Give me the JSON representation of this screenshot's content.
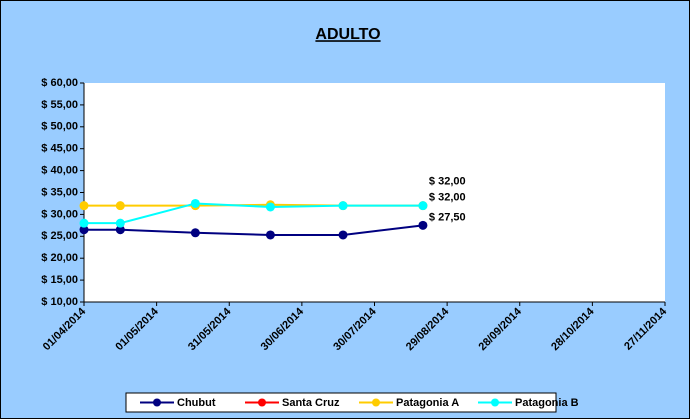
{
  "chart_data": {
    "type": "line",
    "title": "ADULTO",
    "x": [
      "2014-04-01",
      "2014-04-16",
      "2014-05-17",
      "2014-06-17",
      "2014-07-17",
      "2014-08-19"
    ],
    "series": [
      {
        "name": "Chubut",
        "color": "#000080",
        "values": [
          26.5,
          26.5,
          25.8,
          25.3,
          25.3,
          27.5
        ],
        "value_labels": [
          null,
          null,
          null,
          null,
          null,
          "$ 27,50"
        ]
      },
      {
        "name": "Santa Cruz",
        "color": "#ff0000",
        "values": [
          null,
          null,
          null,
          null,
          null,
          null
        ]
      },
      {
        "name": "Patagonia A",
        "color": "#ffcc00",
        "values": [
          32.0,
          32.0,
          32.0,
          32.2,
          32.0,
          32.0
        ],
        "value_labels": [
          null,
          null,
          null,
          null,
          null,
          "$ 32,00"
        ]
      },
      {
        "name": "Patagonia B",
        "color": "#00ffff",
        "values": [
          28.0,
          28.0,
          32.5,
          31.7,
          32.0,
          32.0
        ],
        "value_labels": [
          null,
          null,
          null,
          null,
          null,
          "$ 32,00"
        ]
      }
    ],
    "ylim": [
      10,
      60
    ],
    "yticks": [
      {
        "value": 10,
        "label": "$ 10,00"
      },
      {
        "value": 15,
        "label": "$ 15,00"
      },
      {
        "value": 20,
        "label": "$ 20,00"
      },
      {
        "value": 25,
        "label": "$ 25,00"
      },
      {
        "value": 30,
        "label": "$ 30,00"
      },
      {
        "value": 35,
        "label": "$ 35,00"
      },
      {
        "value": 40,
        "label": "$ 40,00"
      },
      {
        "value": 45,
        "label": "$ 45,00"
      },
      {
        "value": 50,
        "label": "$ 50,00"
      },
      {
        "value": 55,
        "label": "$ 55,00"
      },
      {
        "value": 60,
        "label": "$ 60,00"
      }
    ],
    "xlim": [
      "2014-04-01",
      "2014-11-27"
    ],
    "xticks": [
      {
        "value": "2014-04-01",
        "label": "01/04/2014"
      },
      {
        "value": "2014-05-01",
        "label": "01/05/2014"
      },
      {
        "value": "2014-05-31",
        "label": "31/05/2014"
      },
      {
        "value": "2014-06-30",
        "label": "30/06/2014"
      },
      {
        "value": "2014-07-30",
        "label": "30/07/2014"
      },
      {
        "value": "2014-08-29",
        "label": "29/08/2014"
      },
      {
        "value": "2014-09-28",
        "label": "28/09/2014"
      },
      {
        "value": "2014-10-28",
        "label": "28/10/2014"
      },
      {
        "value": "2014-11-27",
        "label": "27/11/2014"
      }
    ],
    "legend": "bottom",
    "grid": false
  }
}
